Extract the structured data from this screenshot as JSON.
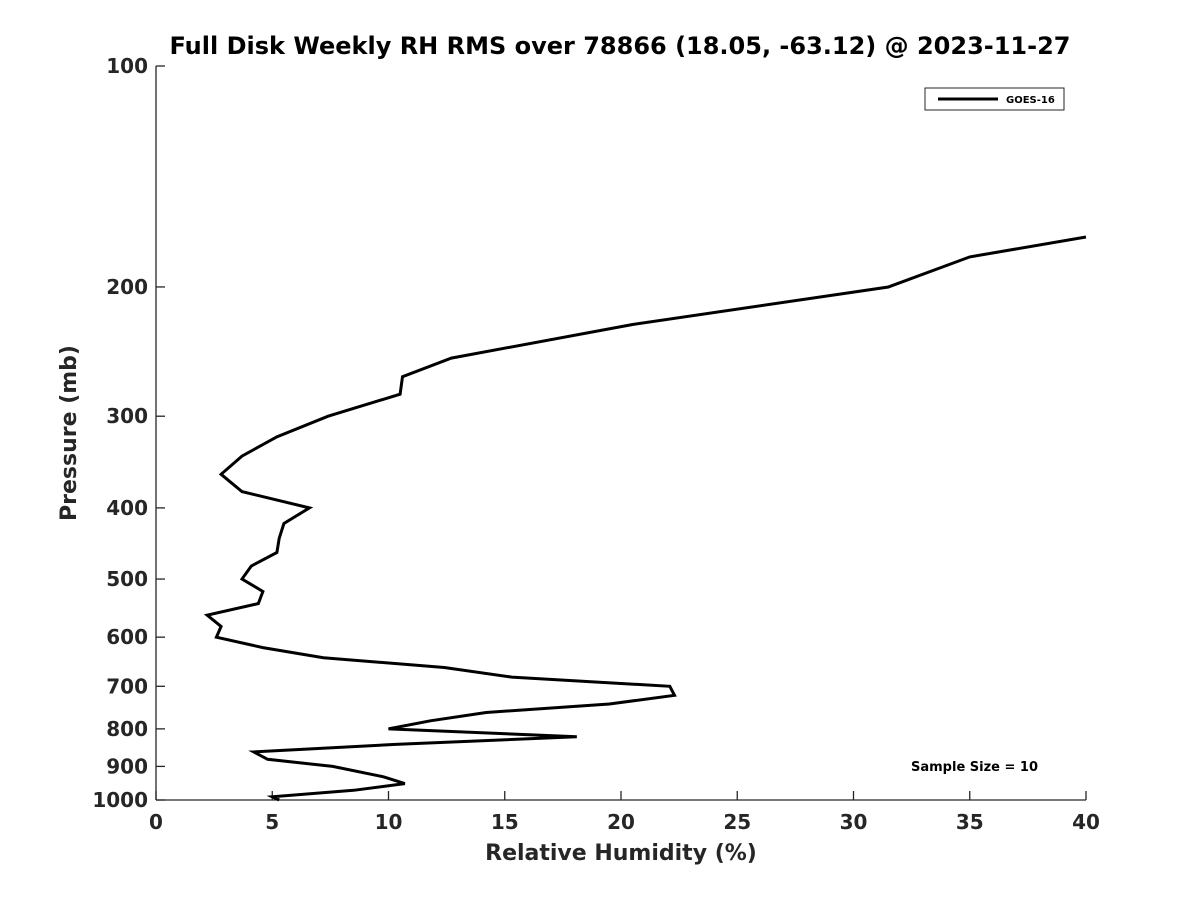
{
  "chart_data": {
    "type": "line",
    "title": "Full Disk Weekly RH RMS over 78866 (18.05, -63.12) @ 2023-11-27",
    "xlabel": "Relative Humidity (%)",
    "ylabel": "Pressure (mb)",
    "xlim": [
      0,
      40
    ],
    "ylim": [
      100,
      1000
    ],
    "y_scale": "log",
    "y_reversed": true,
    "grid": false,
    "legend_position": "top-right",
    "x_ticks": [
      "0",
      "5",
      "10",
      "15",
      "20",
      "25",
      "30",
      "35",
      "40"
    ],
    "y_ticks": [
      "100",
      "200",
      "300",
      "400",
      "500",
      "600",
      "700",
      "800",
      "900",
      "1000"
    ],
    "annotation": "Sample Size = 10",
    "series": [
      {
        "name": "GOES-16",
        "color": "#000000",
        "points": [
          [
            40.0,
            171
          ],
          [
            35.0,
            182
          ],
          [
            31.5,
            200
          ],
          [
            20.5,
            225
          ],
          [
            12.7,
            250
          ],
          [
            10.6,
            265
          ],
          [
            10.5,
            280
          ],
          [
            7.4,
            300
          ],
          [
            5.2,
            320
          ],
          [
            3.7,
            340
          ],
          [
            2.8,
            360
          ],
          [
            3.7,
            380
          ],
          [
            6.6,
            400
          ],
          [
            5.5,
            420
          ],
          [
            5.3,
            440
          ],
          [
            5.2,
            460
          ],
          [
            4.1,
            480
          ],
          [
            3.7,
            500
          ],
          [
            4.6,
            520
          ],
          [
            4.4,
            540
          ],
          [
            2.2,
            560
          ],
          [
            2.8,
            580
          ],
          [
            2.6,
            600
          ],
          [
            4.6,
            620
          ],
          [
            7.2,
            640
          ],
          [
            12.4,
            660
          ],
          [
            15.3,
            680
          ],
          [
            22.1,
            700
          ],
          [
            22.3,
            720
          ],
          [
            19.5,
            740
          ],
          [
            14.2,
            760
          ],
          [
            11.8,
            780
          ],
          [
            10.0,
            800
          ],
          [
            18.1,
            820
          ],
          [
            10.3,
            840
          ],
          [
            4.2,
            860
          ],
          [
            4.8,
            880
          ],
          [
            7.6,
            900
          ],
          [
            9.8,
            930
          ],
          [
            10.7,
            950
          ],
          [
            8.5,
            970
          ],
          [
            5.0,
            990
          ],
          [
            5.3,
            1000
          ]
        ]
      }
    ]
  }
}
